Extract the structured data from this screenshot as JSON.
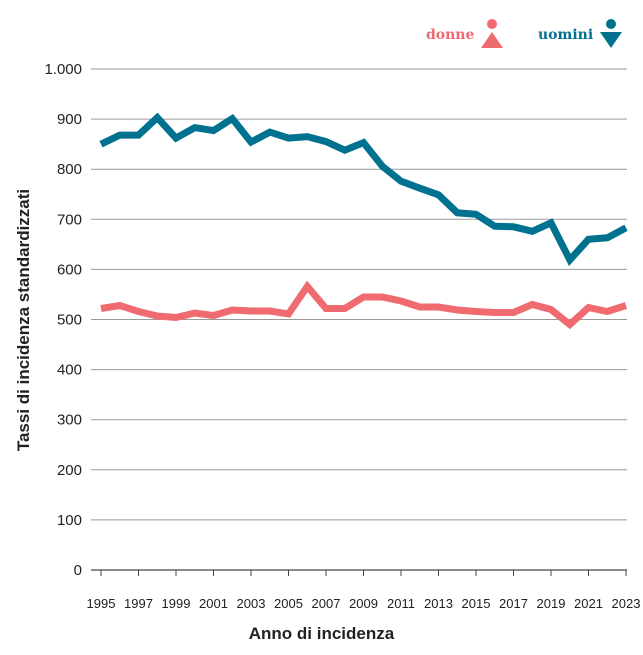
{
  "chart_data": {
    "type": "line",
    "title": "",
    "xlabel": "Anno di incidenza",
    "ylabel": "Tassi di incidenza standardizzati",
    "x": [
      1995,
      1996,
      1997,
      1998,
      1999,
      2000,
      2001,
      2002,
      2003,
      2004,
      2005,
      2006,
      2007,
      2008,
      2009,
      2010,
      2011,
      2012,
      2013,
      2014,
      2015,
      2016,
      2017,
      2018,
      2019,
      2020,
      2021,
      2022,
      2023
    ],
    "xticks": [
      1995,
      1997,
      1999,
      2001,
      2003,
      2005,
      2007,
      2009,
      2011,
      2013,
      2015,
      2017,
      2019,
      2021,
      2023
    ],
    "yticks": [
      0,
      100,
      200,
      300,
      400,
      500,
      600,
      700,
      800,
      900,
      1000
    ],
    "ytick_labels": [
      "0",
      "100",
      "200",
      "300",
      "400",
      "500",
      "600",
      "700",
      "800",
      "900",
      "1.000"
    ],
    "ylim": [
      0,
      1000
    ],
    "grid": "horizontal",
    "legend_position": "top-right",
    "series": [
      {
        "name": "donne",
        "color": "#f06b6f",
        "values": [
          522,
          528,
          516,
          507,
          504,
          513,
          508,
          519,
          517,
          517,
          511,
          566,
          522,
          522,
          545,
          545,
          537,
          525,
          525,
          519,
          516,
          514,
          514,
          530,
          520,
          490,
          524,
          516,
          528
        ]
      },
      {
        "name": "uomini",
        "color": "#00728f",
        "values": [
          850,
          868,
          868,
          903,
          862,
          883,
          877,
          901,
          854,
          874,
          862,
          865,
          855,
          838,
          853,
          806,
          776,
          762,
          749,
          713,
          710,
          686,
          685,
          676,
          693,
          619,
          660,
          663,
          683
        ]
      }
    ]
  },
  "legend": {
    "donne_label": "donne",
    "uomini_label": "uomini",
    "donne_icon": "female-triangle-up-icon",
    "uomini_icon": "male-triangle-down-icon"
  }
}
